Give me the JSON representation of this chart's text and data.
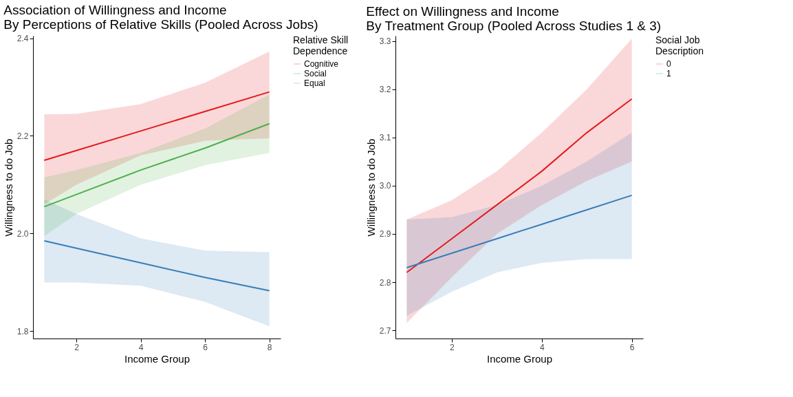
{
  "chart_data": [
    {
      "type": "line",
      "title": "Association of Willingness and Income\nBy Perceptions of Relative Skills (Pooled Across Jobs)",
      "xlabel": "Income Group",
      "ylabel": "Willingness to do Job",
      "legend_title": "Relative Skill\nDependence",
      "legend": "right",
      "grid": false,
      "xlim": [
        0.65,
        8.35
      ],
      "ylim": [
        1.785,
        2.405
      ],
      "xticks": [
        2,
        4,
        6,
        8
      ],
      "yticks": [
        1.8,
        {
          "value": 2,
          "label": "2.0"
        },
        2.2,
        2.4
      ],
      "series": [
        {
          "name": "Cognitive",
          "color": "#e41a1c",
          "x": [
            1,
            2,
            4,
            6,
            8
          ],
          "values": [
            2.15,
            2.17,
            2.21,
            2.25,
            2.29
          ],
          "lower": [
            2.06,
            2.1,
            2.16,
            2.19,
            2.195
          ],
          "upper": [
            2.244,
            2.245,
            2.265,
            2.309,
            2.373
          ]
        },
        {
          "name": "Social",
          "color": "#377eb8",
          "x": [
            1,
            2,
            4,
            6,
            8
          ],
          "values": [
            1.985,
            1.97,
            1.94,
            1.91,
            1.883
          ],
          "lower": [
            1.9,
            1.9,
            1.893,
            1.86,
            1.81
          ],
          "upper": [
            2.07,
            2.04,
            1.99,
            1.965,
            1.962
          ]
        },
        {
          "name": "Equal",
          "color": "#4daf4a",
          "x": [
            1,
            2,
            4,
            6,
            8
          ],
          "values": [
            2.055,
            2.08,
            2.13,
            2.175,
            2.225
          ],
          "lower": [
            1.995,
            2.04,
            2.1,
            2.14,
            2.165
          ],
          "upper": [
            2.115,
            2.13,
            2.165,
            2.215,
            2.285
          ]
        }
      ]
    },
    {
      "type": "line",
      "title": "Effect on Willingness and Income\nBy Treatment Group (Pooled Across Studies 1 & 3)",
      "xlabel": "Income Group",
      "ylabel": "Willingness to do Job",
      "legend_title": "Social Job\nDescription",
      "legend": "right",
      "grid": false,
      "xlim": [
        0.75,
        6.25
      ],
      "ylim": [
        2.683,
        3.311
      ],
      "xticks": [
        2,
        4,
        6
      ],
      "yticks": [
        2.7,
        2.8,
        2.9,
        {
          "value": 3,
          "label": "3.0"
        },
        3.1,
        3.2,
        3.3
      ],
      "series": [
        {
          "name": "0",
          "color": "#e41a1c",
          "x": [
            1,
            2,
            3,
            4,
            5,
            6
          ],
          "values": [
            2.82,
            2.89,
            2.96,
            3.03,
            3.11,
            3.18
          ],
          "lower": [
            2.715,
            2.81,
            2.9,
            2.96,
            3.01,
            3.05
          ],
          "upper": [
            2.93,
            2.97,
            3.03,
            3.11,
            3.2,
            3.305
          ]
        },
        {
          "name": "1",
          "color": "#377eb8",
          "x": [
            1,
            2,
            3,
            4,
            5,
            6
          ],
          "values": [
            2.83,
            2.86,
            2.89,
            2.92,
            2.95,
            2.98
          ],
          "lower": [
            2.73,
            2.78,
            2.82,
            2.84,
            2.848,
            2.848
          ],
          "upper": [
            2.93,
            2.935,
            2.96,
            3.0,
            3.05,
            3.11
          ]
        }
      ]
    }
  ]
}
